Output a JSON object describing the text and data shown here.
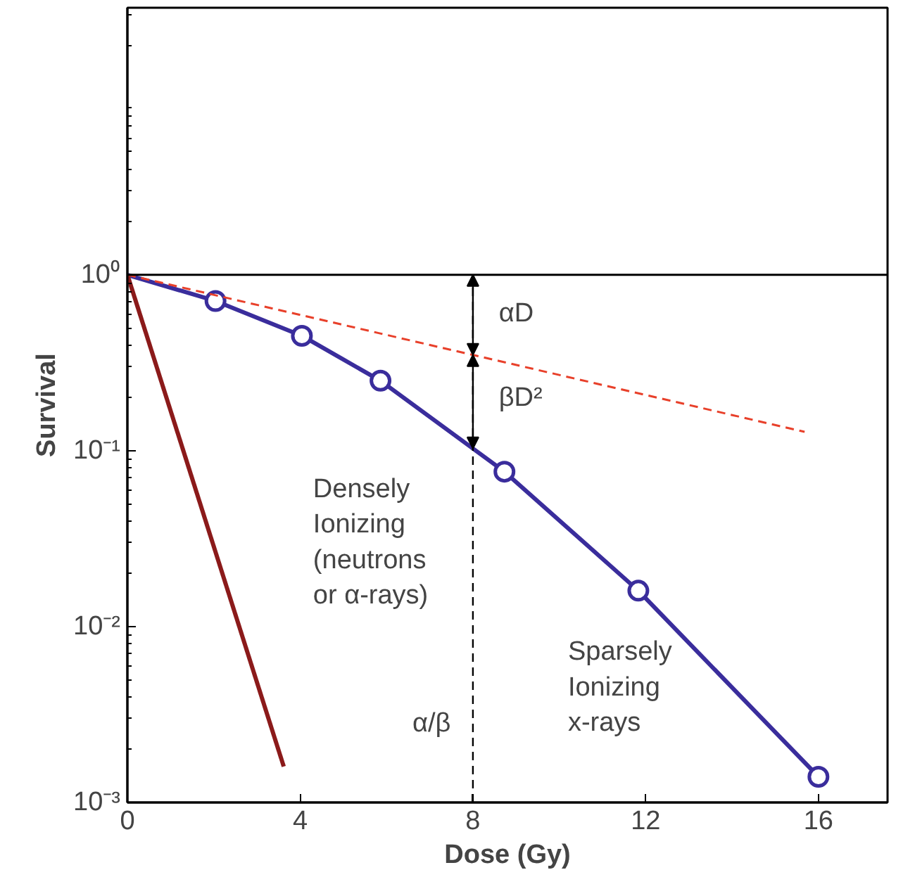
{
  "chart_data": {
    "type": "line",
    "xlabel": "Dose (Gy)",
    "ylabel": "Survival",
    "log": "y",
    "grid": false,
    "xlim": [
      0,
      17.6
    ],
    "xticks": [
      0,
      4,
      8,
      12,
      16
    ],
    "ylim": [
      0.001,
      33
    ],
    "yticks": [
      {
        "value": 1,
        "label": "10⁰"
      },
      {
        "value": 0.1,
        "label": "10⁻¹"
      },
      {
        "value": 0.01,
        "label": "10⁻²"
      },
      {
        "value": 0.001,
        "label": "10⁻³"
      }
    ],
    "series": [
      {
        "color": "#3a2d9c",
        "x": [
          0,
          2.04,
          4.04,
          5.86,
          8.73,
          11.83,
          16
        ],
        "values": [
          1,
          0.71,
          0.45,
          0.25,
          0.076,
          0.016,
          0.0014
        ],
        "line_style": "solid"
      },
      {
        "type": "scatter",
        "color": "#3a2d9c",
        "x": [
          2.04,
          4.04,
          5.86,
          8.73,
          11.83,
          16
        ],
        "values": [
          0.71,
          0.45,
          0.25,
          0.076,
          0.016,
          0.0014
        ],
        "marker": "circle"
      },
      {
        "color": "#8b1a1a",
        "x": [
          0,
          3.62
        ],
        "values": [
          1,
          0.0016
        ],
        "line_style": "solid"
      },
      {
        "color": "#e8402a",
        "x": [
          0,
          15.68
        ],
        "values": [
          1,
          0.128
        ],
        "line_style": "dashed"
      }
    ],
    "ref_lines": [
      {
        "axis": "y",
        "value": 1,
        "color": "#000000",
        "line_style": "solid"
      },
      {
        "axis": "x",
        "value": 8,
        "color": "#000000",
        "line_style": "dashed"
      }
    ],
    "annotations": [
      "αD",
      "βD²",
      "α/β",
      "Densely\nIonizing\n(neutrons\nor α-rays)",
      "Sparsely\nIonizing\nx-rays"
    ]
  }
}
